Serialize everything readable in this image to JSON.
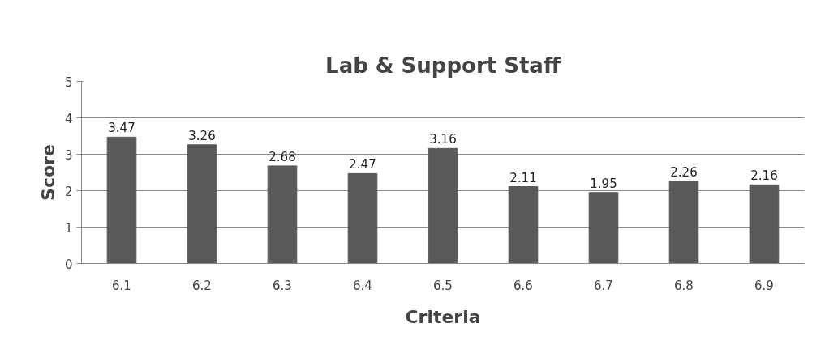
{
  "chart_data": {
    "type": "bar",
    "title": "Lab & Support Staff",
    "xlabel": "Criteria",
    "ylabel": "Score",
    "categories": [
      "6.1",
      "6.2",
      "6.3",
      "6.4",
      "6.5",
      "6.6",
      "6.7",
      "6.8",
      "6.9"
    ],
    "values": [
      3.47,
      3.26,
      2.68,
      2.47,
      3.16,
      2.11,
      1.95,
      2.26,
      2.16
    ],
    "color": "#595959",
    "ylim": [
      0,
      5
    ],
    "yticks": [
      0,
      1,
      2,
      3,
      4,
      5
    ],
    "grid": "y",
    "data_labels": true
  }
}
